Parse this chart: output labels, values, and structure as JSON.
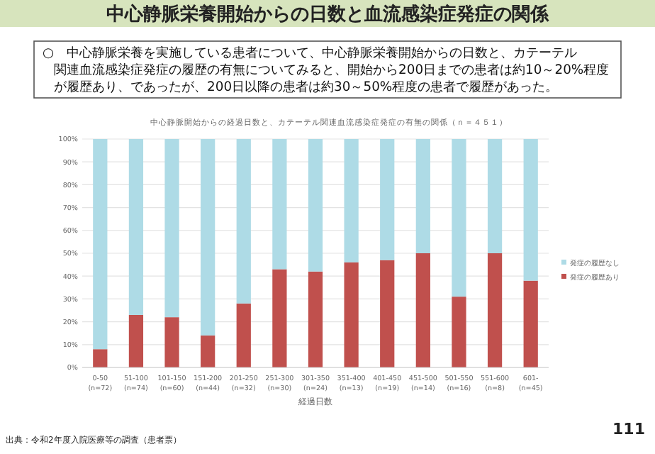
{
  "chart_data": {
    "type": "bar",
    "stacked": true,
    "title": "中心静脈栄養開始からの日数と血流感染症発症の関係",
    "subtitle": "○　中心静脈栄養を実施している患者について、中心静脈栄養開始からの日数と、カテーテル関連血流感染症発症の履歴の有無についてみると、開始から200日までの患者は約10～20%程度が履歴あり、であったが、200日以降の患者は約30～50%程度の患者で履歴があった。",
    "annotations": [
      "中心静脈開始からの経過日数と、カテーテル関連血流感染症発症の有無の関係（ｎ＝４５１）",
      "出典：令和2年度入院医療等の調査（患者票）",
      "111"
    ],
    "xlabel": "経過日数",
    "categories": [
      "0-50\n(n=72)",
      "51-100\n(n=74)",
      "101-150\n(n=60)",
      "151-200\n(n=44)",
      "201-250\n(n=32)",
      "251-300\n(n=30)",
      "301-350\n(n=24)",
      "351-400\n(n=13)",
      "401-450\n(n=19)",
      "451-500\n(n=14)",
      "501-550\n(n=16)",
      "551-600\n(n=8)",
      "601-\n(n=45)"
    ],
    "series": [
      {
        "name": "発症の履歴あり",
        "color": "#c0504d",
        "values": [
          8,
          23,
          22,
          14,
          28,
          43,
          42,
          46,
          47,
          50,
          31,
          50,
          38
        ]
      },
      {
        "name": "発症の履歴なし",
        "color": "#aedbe6",
        "values": [
          92,
          77,
          78,
          86,
          72,
          57,
          58,
          54,
          53,
          50,
          69,
          50,
          62
        ]
      }
    ],
    "ylim": [
      0,
      100
    ],
    "yticks": [
      {
        "value": 0,
        "label": "0%"
      },
      {
        "value": 10,
        "label": "10%"
      },
      {
        "value": 20,
        "label": "20%"
      },
      {
        "value": 30,
        "label": "30%"
      },
      {
        "value": 40,
        "label": "40%"
      },
      {
        "value": 50,
        "label": "50%"
      },
      {
        "value": 60,
        "label": "60%"
      },
      {
        "value": 70,
        "label": "70%"
      },
      {
        "value": 80,
        "label": "80%"
      },
      {
        "value": 90,
        "label": "90%"
      },
      {
        "value": 100,
        "label": "100%"
      }
    ],
    "grid": "y",
    "legend": "right"
  }
}
